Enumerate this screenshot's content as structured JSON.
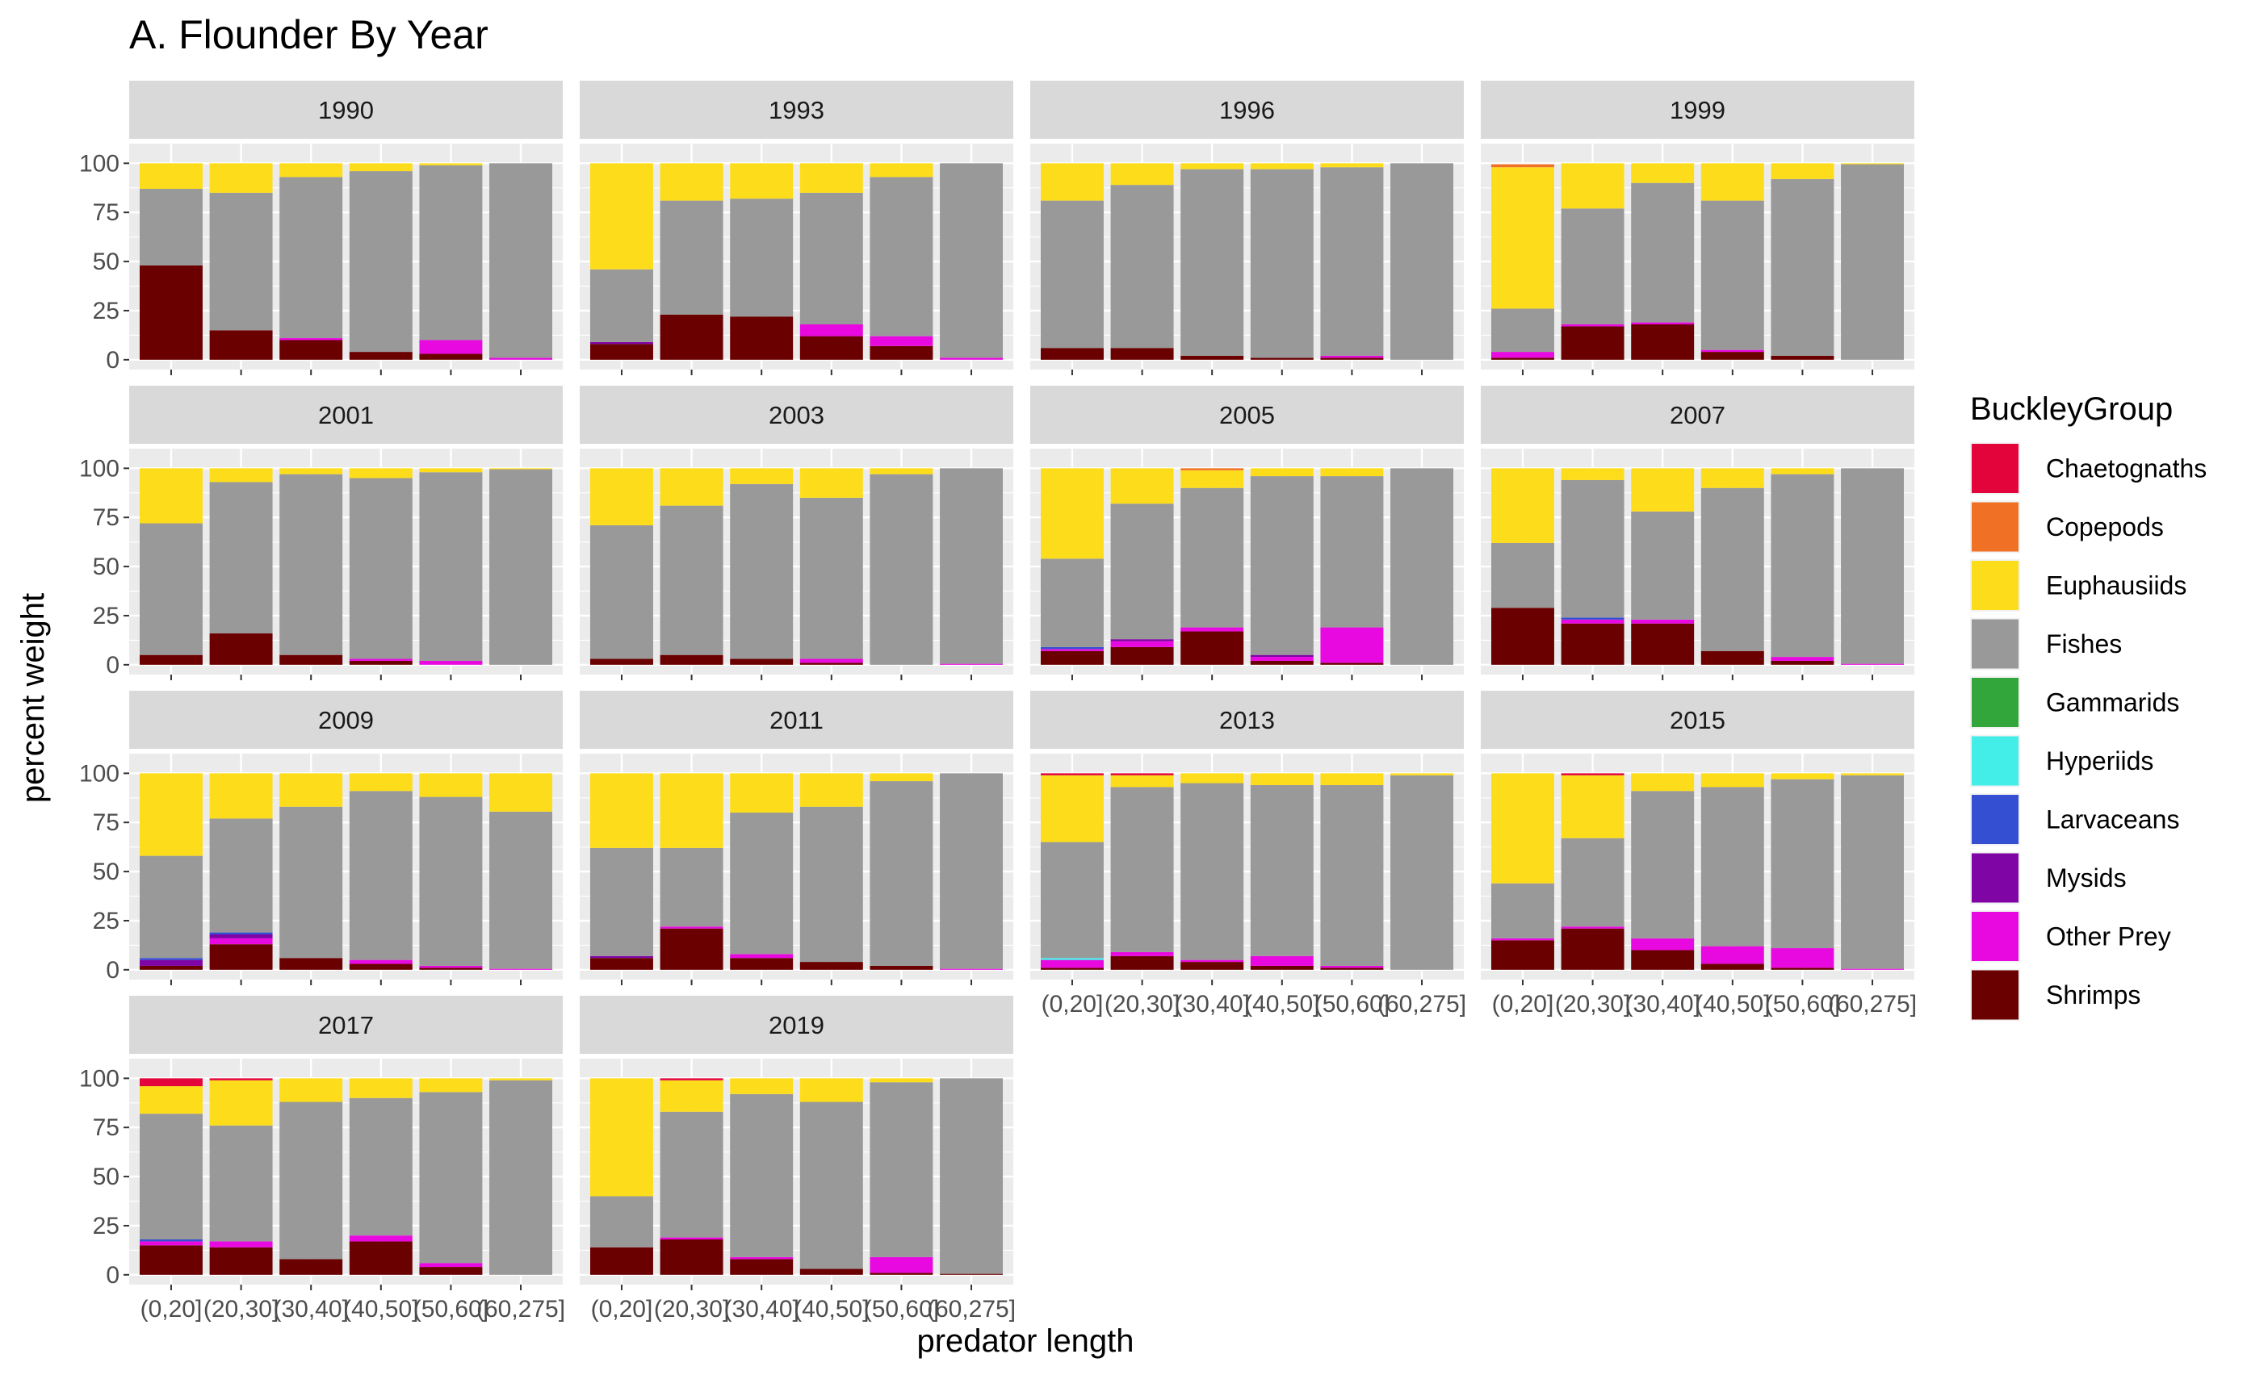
{
  "chart_data": {
    "type": "bar",
    "stacked": true,
    "title": "A. Flounder By Year",
    "xlabel": "predator length",
    "ylabel": "percent weight",
    "ylim": [
      0,
      100
    ],
    "yticks": [
      0,
      25,
      50,
      75,
      100
    ],
    "categories": [
      "(0,20]",
      "(20,30]",
      "(30,40]",
      "(40,50]",
      "(50,60]",
      "(60,275]"
    ],
    "x_tick_labels_visible": [
      "(0,20]",
      "(20,30]",
      "(30,40]",
      "(40,50]",
      "(50,60]",
      "(60,275]"
    ],
    "legend_title": "BuckleyGroup",
    "legend_position": "right",
    "grid": true,
    "groups": [
      {
        "name": "Chaetognaths",
        "color": "#e2043b"
      },
      {
        "name": "Copepods",
        "color": "#f07126"
      },
      {
        "name": "Euphausiids",
        "color": "#fddd1b"
      },
      {
        "name": "Fishes",
        "color": "#999999"
      },
      {
        "name": "Gammarids",
        "color": "#33a63b"
      },
      {
        "name": "Hyperiids",
        "color": "#43ede8"
      },
      {
        "name": "Larvaceans",
        "color": "#344fd1"
      },
      {
        "name": "Mysids",
        "color": "#7f05a5"
      },
      {
        "name": "Other Prey",
        "color": "#e809e0"
      },
      {
        "name": "Shrimps",
        "color": "#6b0000"
      }
    ],
    "stack_order_bottom_to_top": [
      "Shrimps",
      "Other Prey",
      "Mysids",
      "Larvaceans",
      "Hyperiids",
      "Gammarids",
      "Fishes",
      "Euphausiids",
      "Copepods",
      "Chaetognaths"
    ],
    "panels": [
      {
        "year": "1990",
        "bars": [
          {
            "Shrimps": 48,
            "Fishes": 39,
            "Euphausiids": 13
          },
          {
            "Shrimps": 15,
            "Fishes": 70,
            "Euphausiids": 15
          },
          {
            "Shrimps": 10,
            "Other Prey": 1,
            "Fishes": 82,
            "Euphausiids": 7
          },
          {
            "Shrimps": 4,
            "Fishes": 92,
            "Euphausiids": 4
          },
          {
            "Shrimps": 3,
            "Other Prey": 7,
            "Fishes": 89,
            "Euphausiids": 1
          },
          {
            "Other Prey": 1,
            "Fishes": 99
          }
        ]
      },
      {
        "year": "1993",
        "bars": [
          {
            "Shrimps": 8,
            "Mysids": 1,
            "Fishes": 37,
            "Euphausiids": 54
          },
          {
            "Shrimps": 23,
            "Fishes": 58,
            "Euphausiids": 19
          },
          {
            "Shrimps": 22,
            "Fishes": 60,
            "Euphausiids": 18
          },
          {
            "Shrimps": 12,
            "Other Prey": 6,
            "Fishes": 67,
            "Euphausiids": 15
          },
          {
            "Shrimps": 7,
            "Other Prey": 5,
            "Fishes": 81,
            "Euphausiids": 7
          },
          {
            "Other Prey": 1,
            "Fishes": 99
          }
        ]
      },
      {
        "year": "1996",
        "bars": [
          {
            "Shrimps": 6,
            "Fishes": 75,
            "Euphausiids": 19
          },
          {
            "Shrimps": 6,
            "Fishes": 83,
            "Euphausiids": 11
          },
          {
            "Shrimps": 2,
            "Fishes": 95,
            "Euphausiids": 3
          },
          {
            "Shrimps": 1,
            "Fishes": 96,
            "Euphausiids": 3
          },
          {
            "Shrimps": 1,
            "Other Prey": 1,
            "Fishes": 96,
            "Euphausiids": 2
          },
          {
            "Fishes": 100
          }
        ]
      },
      {
        "year": "1999",
        "bars": [
          {
            "Shrimps": 1,
            "Other Prey": 3,
            "Fishes": 22,
            "Euphausiids": 72,
            "Copepods": 1.5
          },
          {
            "Shrimps": 17,
            "Other Prey": 1,
            "Fishes": 59,
            "Euphausiids": 23
          },
          {
            "Shrimps": 18,
            "Other Prey": 1,
            "Fishes": 71,
            "Euphausiids": 10
          },
          {
            "Shrimps": 4,
            "Other Prey": 1,
            "Fishes": 76,
            "Euphausiids": 19
          },
          {
            "Shrimps": 2,
            "Fishes": 90,
            "Euphausiids": 8
          },
          {
            "Fishes": 99.5,
            "Euphausiids": 0.5
          }
        ]
      },
      {
        "year": "2001",
        "bars": [
          {
            "Shrimps": 5,
            "Fishes": 67,
            "Euphausiids": 28
          },
          {
            "Shrimps": 16,
            "Fishes": 77,
            "Euphausiids": 7
          },
          {
            "Shrimps": 5,
            "Fishes": 92,
            "Euphausiids": 3
          },
          {
            "Shrimps": 2,
            "Other Prey": 1,
            "Fishes": 92,
            "Euphausiids": 5
          },
          {
            "Other Prey": 2,
            "Fishes": 96,
            "Euphausiids": 2
          },
          {
            "Fishes": 99.5,
            "Euphausiids": 0.5
          }
        ]
      },
      {
        "year": "2003",
        "bars": [
          {
            "Shrimps": 3,
            "Fishes": 68,
            "Euphausiids": 29
          },
          {
            "Shrimps": 5,
            "Fishes": 76,
            "Euphausiids": 19
          },
          {
            "Shrimps": 3,
            "Fishes": 89,
            "Euphausiids": 8
          },
          {
            "Shrimps": 1,
            "Other Prey": 2,
            "Fishes": 82,
            "Euphausiids": 15
          },
          {
            "Fishes": 97,
            "Euphausiids": 3
          },
          {
            "Other Prey": 0.5,
            "Fishes": 99.5
          }
        ]
      },
      {
        "year": "2005",
        "bars": [
          {
            "Shrimps": 7,
            "Other Prey": 1,
            "Larvaceans": 1,
            "Fishes": 45,
            "Euphausiids": 46
          },
          {
            "Shrimps": 9,
            "Other Prey": 3,
            "Mysids": 1,
            "Fishes": 69,
            "Euphausiids": 18
          },
          {
            "Shrimps": 17,
            "Other Prey": 2,
            "Fishes": 71,
            "Euphausiids": 9,
            "Copepods": 1
          },
          {
            "Shrimps": 2,
            "Other Prey": 2,
            "Mysids": 1,
            "Fishes": 91,
            "Euphausiids": 4
          },
          {
            "Shrimps": 1,
            "Other Prey": 18,
            "Fishes": 77,
            "Euphausiids": 4
          },
          {
            "Fishes": 100
          }
        ]
      },
      {
        "year": "2007",
        "bars": [
          {
            "Shrimps": 29,
            "Fishes": 33,
            "Euphausiids": 38
          },
          {
            "Shrimps": 21,
            "Other Prey": 2,
            "Larvaceans": 1,
            "Fishes": 70,
            "Euphausiids": 6
          },
          {
            "Shrimps": 21,
            "Other Prey": 2,
            "Fishes": 55,
            "Euphausiids": 22
          },
          {
            "Shrimps": 7,
            "Fishes": 83,
            "Euphausiids": 10
          },
          {
            "Shrimps": 2,
            "Other Prey": 2,
            "Fishes": 93,
            "Euphausiids": 3
          },
          {
            "Other Prey": 0.5,
            "Fishes": 99.5
          }
        ]
      },
      {
        "year": "2009",
        "bars": [
          {
            "Shrimps": 2,
            "Mysids": 3,
            "Larvaceans": 1,
            "Fishes": 52,
            "Euphausiids": 42
          },
          {
            "Shrimps": 13,
            "Other Prey": 3,
            "Mysids": 2,
            "Larvaceans": 1,
            "Fishes": 58,
            "Euphausiids": 23
          },
          {
            "Shrimps": 6,
            "Fishes": 77,
            "Euphausiids": 17
          },
          {
            "Shrimps": 3,
            "Other Prey": 2,
            "Fishes": 86,
            "Euphausiids": 9
          },
          {
            "Shrimps": 1,
            "Other Prey": 1,
            "Fishes": 86,
            "Euphausiids": 12
          },
          {
            "Other Prey": 0.5,
            "Fishes": 80,
            "Euphausiids": 19.5
          }
        ]
      },
      {
        "year": "2011",
        "bars": [
          {
            "Shrimps": 6,
            "Mysids": 1,
            "Fishes": 55,
            "Euphausiids": 38
          },
          {
            "Shrimps": 21,
            "Other Prey": 1,
            "Fishes": 40,
            "Euphausiids": 38
          },
          {
            "Shrimps": 6,
            "Other Prey": 2,
            "Fishes": 72,
            "Euphausiids": 20
          },
          {
            "Shrimps": 4,
            "Fishes": 79,
            "Euphausiids": 17
          },
          {
            "Shrimps": 2,
            "Fishes": 94,
            "Euphausiids": 4
          },
          {
            "Other Prey": 0.5,
            "Fishes": 99.5
          }
        ]
      },
      {
        "year": "2013",
        "bars": [
          {
            "Shrimps": 1,
            "Other Prey": 4,
            "Hyperiids": 1,
            "Fishes": 59,
            "Euphausiids": 34,
            "Chaetognaths": 1
          },
          {
            "Shrimps": 7,
            "Other Prey": 2,
            "Fishes": 84,
            "Euphausiids": 6,
            "Chaetognaths": 1
          },
          {
            "Shrimps": 4,
            "Other Prey": 1,
            "Fishes": 90,
            "Euphausiids": 5
          },
          {
            "Shrimps": 2,
            "Other Prey": 5,
            "Fishes": 87,
            "Euphausiids": 6
          },
          {
            "Shrimps": 1,
            "Other Prey": 1,
            "Fishes": 92,
            "Euphausiids": 6
          },
          {
            "Fishes": 99,
            "Euphausiids": 1
          }
        ]
      },
      {
        "year": "2015",
        "bars": [
          {
            "Shrimps": 15,
            "Other Prey": 1,
            "Fishes": 28,
            "Euphausiids": 56
          },
          {
            "Shrimps": 21,
            "Other Prey": 1,
            "Fishes": 45,
            "Euphausiids": 32,
            "Chaetognaths": 1
          },
          {
            "Shrimps": 10,
            "Other Prey": 6,
            "Fishes": 75,
            "Euphausiids": 9
          },
          {
            "Shrimps": 3,
            "Other Prey": 9,
            "Fishes": 81,
            "Euphausiids": 7
          },
          {
            "Shrimps": 1,
            "Other Prey": 10,
            "Fishes": 86,
            "Euphausiids": 3
          },
          {
            "Other Prey": 0.5,
            "Fishes": 98.5,
            "Euphausiids": 1
          }
        ]
      },
      {
        "year": "2017",
        "bars": [
          {
            "Shrimps": 15,
            "Other Prey": 2,
            "Larvaceans": 1,
            "Fishes": 64,
            "Euphausiids": 14,
            "Chaetognaths": 4
          },
          {
            "Shrimps": 14,
            "Other Prey": 3,
            "Fishes": 59,
            "Euphausiids": 23,
            "Chaetognaths": 1
          },
          {
            "Shrimps": 8,
            "Fishes": 80,
            "Euphausiids": 12
          },
          {
            "Shrimps": 17,
            "Other Prey": 3,
            "Fishes": 70,
            "Euphausiids": 10
          },
          {
            "Shrimps": 4,
            "Other Prey": 2,
            "Fishes": 87,
            "Euphausiids": 7
          },
          {
            "Fishes": 99,
            "Euphausiids": 1
          }
        ]
      },
      {
        "year": "2019",
        "bars": [
          {
            "Shrimps": 14,
            "Fishes": 26,
            "Euphausiids": 60
          },
          {
            "Shrimps": 18,
            "Other Prey": 1,
            "Fishes": 64,
            "Euphausiids": 16,
            "Chaetognaths": 1
          },
          {
            "Shrimps": 8,
            "Other Prey": 1,
            "Fishes": 83,
            "Euphausiids": 8
          },
          {
            "Shrimps": 3,
            "Fishes": 85,
            "Euphausiids": 12
          },
          {
            "Shrimps": 1,
            "Other Prey": 8,
            "Fishes": 89,
            "Euphausiids": 2
          },
          {
            "Shrimps": 0.5,
            "Fishes": 99.5
          }
        ]
      }
    ]
  }
}
